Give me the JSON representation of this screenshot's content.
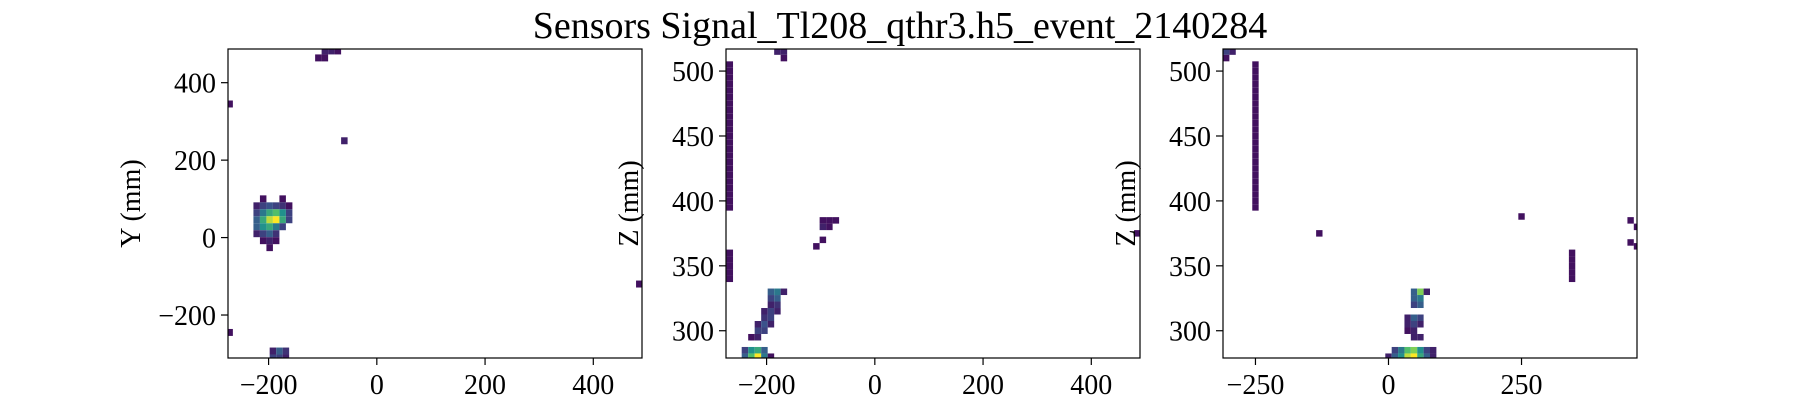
{
  "title": "Sensors Signal_Tl208_qthr3.h5_event_2140284",
  "chart_data": [
    {
      "type": "heatmap",
      "ylabel": "Y (mm)",
      "colormap": "viridis",
      "xlim": [
        -275,
        490
      ],
      "ylim": [
        -311,
        487
      ],
      "xticks": [
        {
          "value": -200,
          "label": "−200"
        },
        0,
        200,
        400
      ],
      "yticks": [
        {
          "value": -200,
          "label": "−200"
        },
        0,
        200,
        400
      ],
      "xbin": 12,
      "ybin": 18,
      "cells": [
        [
          -210,
          100,
          0.05
        ],
        [
          -174,
          100,
          0.05
        ],
        [
          -222,
          82,
          0.1
        ],
        [
          -210,
          82,
          0.2
        ],
        [
          -198,
          82,
          0.25
        ],
        [
          -186,
          82,
          0.2
        ],
        [
          -174,
          82,
          0.15
        ],
        [
          -162,
          82,
          0.05
        ],
        [
          -222,
          64,
          0.2
        ],
        [
          -210,
          64,
          0.4
        ],
        [
          -198,
          64,
          0.6
        ],
        [
          -186,
          64,
          0.7
        ],
        [
          -174,
          64,
          0.5
        ],
        [
          -162,
          64,
          0.2
        ],
        [
          -222,
          46,
          0.3
        ],
        [
          -210,
          46,
          0.6
        ],
        [
          -198,
          46,
          0.9
        ],
        [
          -186,
          46,
          1.0
        ],
        [
          -174,
          46,
          0.6
        ],
        [
          -162,
          46,
          0.2
        ],
        [
          -222,
          28,
          0.3
        ],
        [
          -210,
          28,
          0.5
        ],
        [
          -198,
          28,
          0.6
        ],
        [
          -186,
          28,
          0.4
        ],
        [
          -174,
          28,
          0.2
        ],
        [
          -222,
          10,
          0.1
        ],
        [
          -210,
          10,
          0.2
        ],
        [
          -198,
          10,
          0.3
        ],
        [
          -186,
          10,
          0.15
        ],
        [
          -210,
          -8,
          0.05
        ],
        [
          -198,
          -8,
          0.1
        ],
        [
          -186,
          -8,
          0.05
        ],
        [
          -198,
          -26,
          0.05
        ],
        [
          -96,
          482,
          0.1
        ],
        [
          -84,
          482,
          0.1
        ],
        [
          -72,
          482,
          0.05
        ],
        [
          -108,
          464,
          0.05
        ],
        [
          -96,
          464,
          0.05
        ],
        [
          -272,
          345,
          0.05
        ],
        [
          -60,
          250,
          0.1
        ],
        [
          485,
          -120,
          0.05
        ],
        [
          -272,
          -245,
          0.05
        ],
        [
          -192,
          -293,
          0.1
        ],
        [
          -180,
          -293,
          0.3
        ],
        [
          -168,
          -293,
          0.15
        ],
        [
          -192,
          -311,
          0.2
        ],
        [
          -180,
          -311,
          0.2
        ],
        [
          -168,
          -311,
          0.1
        ]
      ]
    },
    {
      "type": "heatmap",
      "ylabel": "Z (mm)",
      "colormap": "viridis",
      "xlim": [
        -275,
        490
      ],
      "ylim": [
        279,
        517
      ],
      "xticks": [
        {
          "value": -200,
          "label": "−200"
        },
        0,
        200,
        400
      ],
      "yticks": [
        300,
        350,
        400,
        450,
        500
      ],
      "xbin": 12,
      "ybin": 5,
      "cells": [
        [
          -268,
          395,
          0.05
        ],
        [
          -268,
          400,
          0.05
        ],
        [
          -268,
          405,
          0.05
        ],
        [
          -268,
          410,
          0.05
        ],
        [
          -268,
          415,
          0.05
        ],
        [
          -268,
          420,
          0.05
        ],
        [
          -268,
          425,
          0.05
        ],
        [
          -268,
          430,
          0.05
        ],
        [
          -268,
          435,
          0.05
        ],
        [
          -268,
          440,
          0.05
        ],
        [
          -268,
          445,
          0.05
        ],
        [
          -268,
          450,
          0.05
        ],
        [
          -268,
          455,
          0.05
        ],
        [
          -268,
          460,
          0.05
        ],
        [
          -268,
          465,
          0.05
        ],
        [
          -268,
          470,
          0.05
        ],
        [
          -268,
          475,
          0.05
        ],
        [
          -268,
          480,
          0.05
        ],
        [
          -268,
          485,
          0.05
        ],
        [
          -268,
          490,
          0.05
        ],
        [
          -268,
          495,
          0.05
        ],
        [
          -268,
          500,
          0.05
        ],
        [
          -268,
          505,
          0.05
        ],
        [
          -268,
          340,
          0.05
        ],
        [
          -268,
          345,
          0.05
        ],
        [
          -268,
          350,
          0.05
        ],
        [
          -268,
          355,
          0.05
        ],
        [
          -268,
          360,
          0.05
        ],
        [
          -180,
          515,
          0.1
        ],
        [
          -168,
          515,
          0.1
        ],
        [
          -168,
          510,
          0.05
        ],
        [
          -96,
          385,
          0.05
        ],
        [
          -84,
          385,
          0.05
        ],
        [
          -72,
          385,
          0.05
        ],
        [
          -96,
          380,
          0.1
        ],
        [
          -84,
          380,
          0.05
        ],
        [
          -96,
          370,
          0.05
        ],
        [
          -108,
          365,
          0.05
        ],
        [
          485,
          375,
          0.05
        ],
        [
          -192,
          330,
          0.3
        ],
        [
          -180,
          330,
          0.4
        ],
        [
          -168,
          330,
          0.1
        ],
        [
          -192,
          325,
          0.2
        ],
        [
          -180,
          325,
          0.3
        ],
        [
          -192,
          320,
          0.1
        ],
        [
          -180,
          320,
          0.15
        ],
        [
          -204,
          315,
          0.1
        ],
        [
          -192,
          315,
          0.2
        ],
        [
          -180,
          315,
          0.1
        ],
        [
          -204,
          310,
          0.15
        ],
        [
          -192,
          310,
          0.2
        ],
        [
          -216,
          305,
          0.1
        ],
        [
          -204,
          305,
          0.25
        ],
        [
          -192,
          305,
          0.1
        ],
        [
          -216,
          300,
          0.2
        ],
        [
          -204,
          300,
          0.2
        ],
        [
          -228,
          295,
          0.05
        ],
        [
          -216,
          295,
          0.1
        ],
        [
          -240,
          285,
          0.2
        ],
        [
          -228,
          285,
          0.5
        ],
        [
          -216,
          285,
          0.6
        ],
        [
          -204,
          285,
          0.3
        ],
        [
          -240,
          280,
          0.3
        ],
        [
          -228,
          280,
          0.7
        ],
        [
          -216,
          280,
          1.0
        ],
        [
          -204,
          280,
          0.4
        ],
        [
          -192,
          280,
          0.05
        ],
        [
          -240,
          275,
          0.1
        ],
        [
          -228,
          275,
          0.3
        ],
        [
          -216,
          275,
          0.3
        ]
      ]
    },
    {
      "type": "heatmap",
      "ylabel": "Z (mm)",
      "colormap": "viridis",
      "xlim": [
        -311,
        467
      ],
      "ylim": [
        279,
        517
      ],
      "xticks": [
        {
          "value": -250,
          "label": "−250"
        },
        0,
        250
      ],
      "yticks": [
        300,
        350,
        400,
        450,
        500
      ],
      "xbin": 12,
      "ybin": 5,
      "cells": [
        [
          -250,
          395,
          0.05
        ],
        [
          -250,
          400,
          0.05
        ],
        [
          -250,
          405,
          0.05
        ],
        [
          -250,
          410,
          0.05
        ],
        [
          -250,
          415,
          0.05
        ],
        [
          -250,
          420,
          0.05
        ],
        [
          -250,
          425,
          0.05
        ],
        [
          -250,
          430,
          0.05
        ],
        [
          -250,
          435,
          0.05
        ],
        [
          -250,
          440,
          0.05
        ],
        [
          -250,
          445,
          0.05
        ],
        [
          -250,
          450,
          0.05
        ],
        [
          -250,
          455,
          0.05
        ],
        [
          -250,
          460,
          0.05
        ],
        [
          -250,
          465,
          0.05
        ],
        [
          -250,
          470,
          0.05
        ],
        [
          -250,
          475,
          0.05
        ],
        [
          -250,
          480,
          0.05
        ],
        [
          -250,
          485,
          0.05
        ],
        [
          -250,
          490,
          0.05
        ],
        [
          -250,
          495,
          0.05
        ],
        [
          -250,
          500,
          0.05
        ],
        [
          -250,
          505,
          0.05
        ],
        [
          -305,
          515,
          0.2
        ],
        [
          -293,
          515,
          0.1
        ],
        [
          -305,
          510,
          0.05
        ],
        [
          -130,
          375,
          0.05
        ],
        [
          250,
          388,
          0.05
        ],
        [
          345,
          340,
          0.05
        ],
        [
          345,
          345,
          0.05
        ],
        [
          345,
          350,
          0.05
        ],
        [
          345,
          355,
          0.05
        ],
        [
          345,
          360,
          0.05
        ],
        [
          455,
          385,
          0.05
        ],
        [
          467,
          380,
          0.05
        ],
        [
          455,
          368,
          0.05
        ],
        [
          467,
          365,
          0.05
        ],
        [
          48,
          330,
          0.3
        ],
        [
          60,
          330,
          0.8
        ],
        [
          72,
          330,
          0.1
        ],
        [
          48,
          325,
          0.3
        ],
        [
          60,
          325,
          0.4
        ],
        [
          48,
          320,
          0.2
        ],
        [
          60,
          320,
          0.3
        ],
        [
          36,
          310,
          0.1
        ],
        [
          48,
          310,
          0.3
        ],
        [
          60,
          310,
          0.2
        ],
        [
          36,
          305,
          0.1
        ],
        [
          48,
          305,
          0.2
        ],
        [
          60,
          305,
          0.1
        ],
        [
          36,
          300,
          0.05
        ],
        [
          48,
          300,
          0.1
        ],
        [
          48,
          295,
          0.1
        ],
        [
          60,
          295,
          0.1
        ],
        [
          12,
          285,
          0.2
        ],
        [
          24,
          285,
          0.4
        ],
        [
          36,
          285,
          0.7
        ],
        [
          48,
          285,
          0.8
        ],
        [
          60,
          285,
          0.5
        ],
        [
          72,
          285,
          0.2
        ],
        [
          84,
          285,
          0.1
        ],
        [
          0,
          280,
          0.1
        ],
        [
          12,
          280,
          0.3
        ],
        [
          24,
          280,
          0.5
        ],
        [
          36,
          280,
          0.9
        ],
        [
          48,
          280,
          1.0
        ],
        [
          60,
          280,
          0.6
        ],
        [
          72,
          280,
          0.3
        ],
        [
          84,
          280,
          0.1
        ],
        [
          12,
          275,
          0.05
        ],
        [
          24,
          275,
          0.1
        ],
        [
          36,
          275,
          0.2
        ]
      ]
    }
  ]
}
